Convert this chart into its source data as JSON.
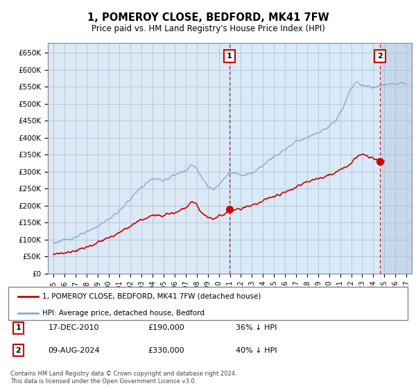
{
  "title": "1, POMEROY CLOSE, BEDFORD, MK41 7FW",
  "subtitle": "Price paid vs. HM Land Registry's House Price Index (HPI)",
  "ylabel_ticks": [
    "£0",
    "£50K",
    "£100K",
    "£150K",
    "£200K",
    "£250K",
    "£300K",
    "£350K",
    "£400K",
    "£450K",
    "£500K",
    "£550K",
    "£600K",
    "£650K"
  ],
  "ytick_values": [
    0,
    50000,
    100000,
    150000,
    200000,
    250000,
    300000,
    350000,
    400000,
    450000,
    500000,
    550000,
    600000,
    650000
  ],
  "xlim_start": 1994.5,
  "xlim_end": 2027.5,
  "ylim_min": 0,
  "ylim_max": 680000,
  "hpi_color": "#7bafd4",
  "price_color": "#cc0000",
  "annotation_color": "#cc0000",
  "chart_bg": "#dce8f5",
  "hatch_bg": "#c8d8e8",
  "legend_label_price": "1, POMEROY CLOSE, BEDFORD, MK41 7FW (detached house)",
  "legend_label_hpi": "HPI: Average price, detached house, Bedford",
  "transaction1_date": "17-DEC-2010",
  "transaction1_price": "£190,000",
  "transaction1_note": "36% ↓ HPI",
  "transaction2_date": "09-AUG-2024",
  "transaction2_price": "£330,000",
  "transaction2_note": "40% ↓ HPI",
  "footer": "Contains HM Land Registry data © Crown copyright and database right 2024.\nThis data is licensed under the Open Government Licence v3.0.",
  "transaction1_year": 2010.96,
  "transaction2_year": 2024.62
}
